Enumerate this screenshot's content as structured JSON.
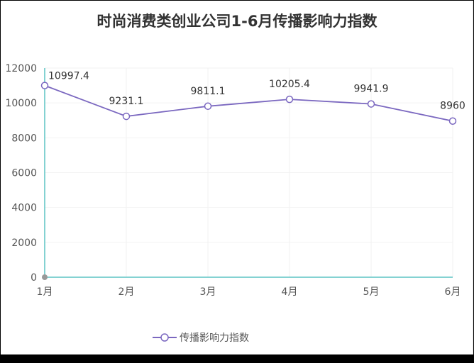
{
  "title": "时尚消费类创业公司1-6月传播影响力指数",
  "chart_data": {
    "type": "line",
    "title": "时尚消费类创业公司1-6月传播影响力指数",
    "categories": [
      "1月",
      "2月",
      "3月",
      "4月",
      "5月",
      "6月"
    ],
    "series": [
      {
        "name": "传播影响力指数",
        "values": [
          10997.4,
          9231.1,
          9811.1,
          10205.4,
          9941.9,
          8960
        ],
        "color": "#7b68c0"
      }
    ],
    "value_labels": [
      "10997.4",
      "9231.1",
      "9811.1",
      "10205.4",
      "9941.9",
      "8960"
    ],
    "yticks": [
      "0",
      "2000",
      "4000",
      "6000",
      "8000",
      "10000",
      "12000"
    ],
    "ylim": [
      0,
      12000
    ],
    "xlabel": "",
    "ylabel": "",
    "grid": true,
    "legend_position": "bottom",
    "axis_color": "#5bc4c4"
  },
  "legend": {
    "label": "传播影响力指数"
  }
}
